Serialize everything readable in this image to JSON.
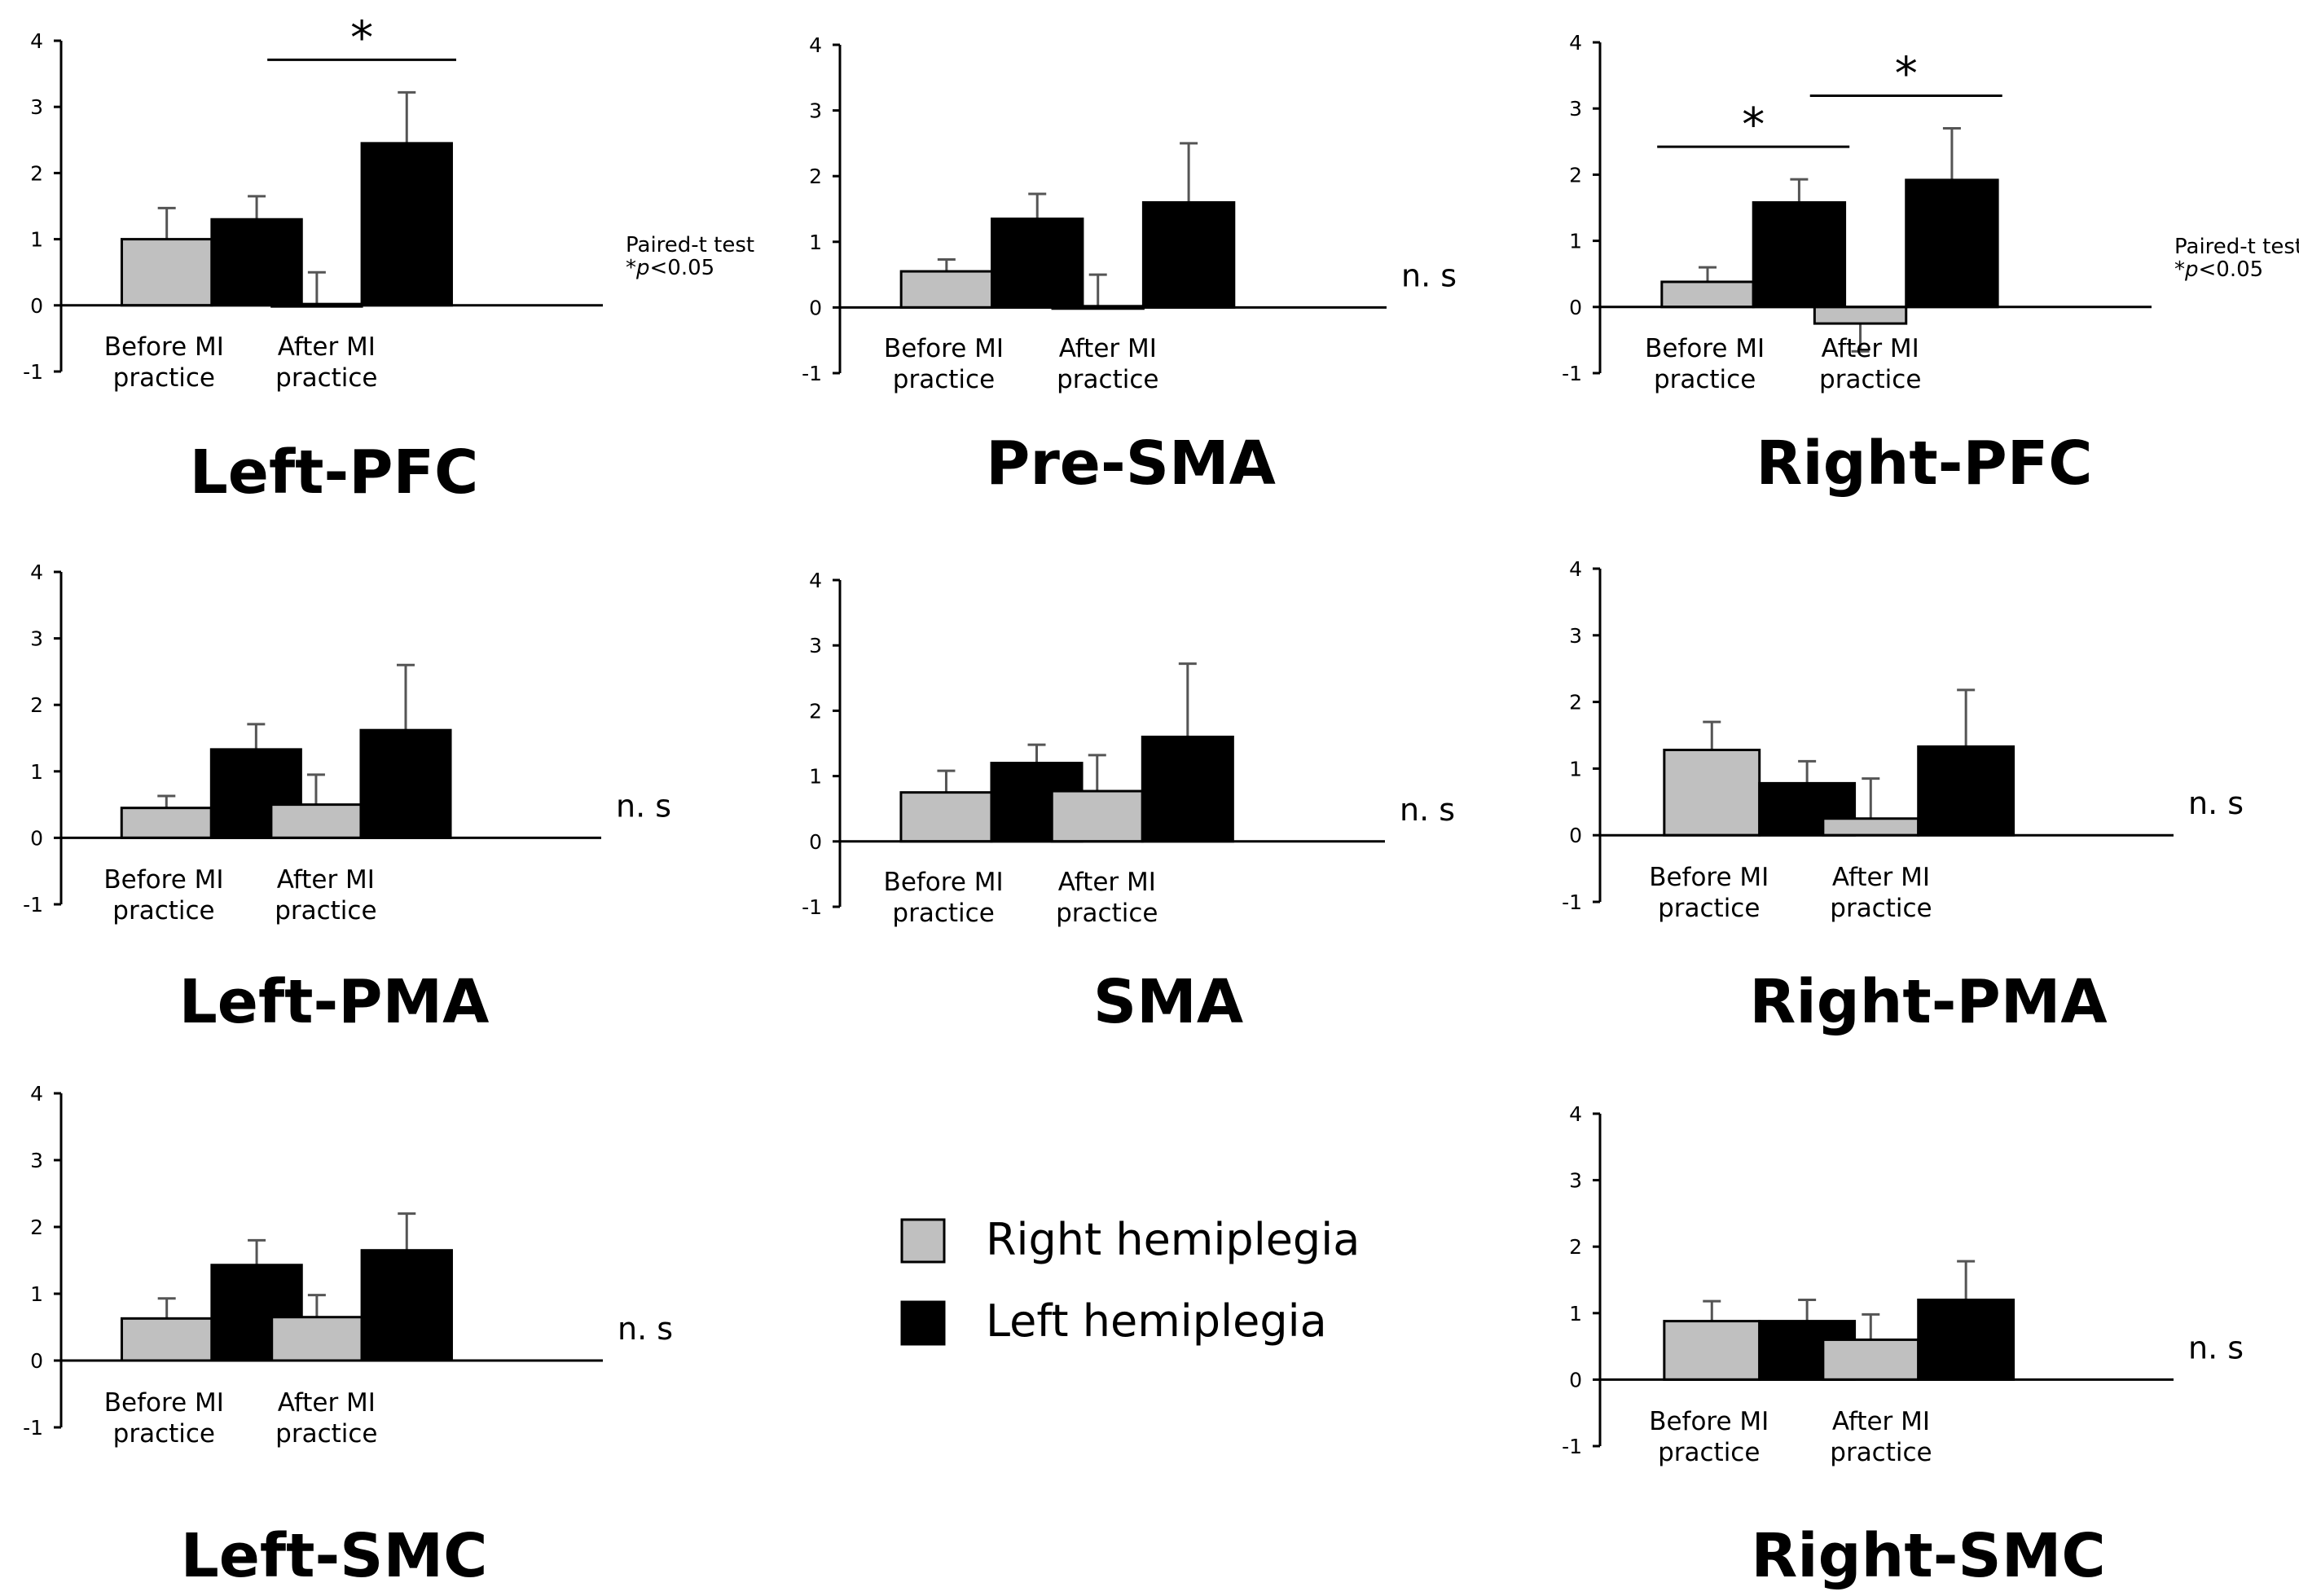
{
  "figure": {
    "legend": [
      {
        "label": "Right hemiplegia",
        "color": "#c0c0c0"
      },
      {
        "label": "Left hemiplegia",
        "color": "#000000"
      }
    ],
    "significance_note": {
      "line1": "Paired-t test",
      "prefix": "*",
      "p": "p",
      "suffix": "<0.05"
    },
    "ns_label": "n. s",
    "star_label": "*",
    "category_label_lines": [
      [
        "Before MI",
        "practice"
      ],
      [
        "After MI",
        "practice"
      ]
    ]
  },
  "chart_data": [
    {
      "type": "bar",
      "title": "Left-PFC",
      "categories": [
        "Before MI practice",
        "After MI practice"
      ],
      "yticks": [
        -1,
        0,
        1,
        2,
        3,
        4
      ],
      "ylim": [
        -1,
        4
      ],
      "series": [
        {
          "name": "Right hemiplegia",
          "values": [
            1.0,
            0.02
          ],
          "errors": [
            0.47,
            0.48
          ]
        },
        {
          "name": "Left hemiplegia",
          "values": [
            1.3,
            2.45
          ],
          "errors": [
            0.35,
            0.77
          ]
        }
      ],
      "significant": [
        false,
        true
      ],
      "annotation": "note"
    },
    {
      "type": "bar",
      "title": "Pre-SMA",
      "categories": [
        "Before MI practice",
        "After MI practice"
      ],
      "yticks": [
        -1,
        0,
        1,
        2,
        3,
        4
      ],
      "ylim": [
        -1,
        4
      ],
      "series": [
        {
          "name": "Right hemiplegia",
          "values": [
            0.55,
            0.02
          ],
          "errors": [
            0.18,
            0.48
          ]
        },
        {
          "name": "Left hemiplegia",
          "values": [
            1.35,
            1.6
          ],
          "errors": [
            0.38,
            0.9
          ]
        }
      ],
      "significant": [
        false,
        false
      ],
      "annotation": "ns"
    },
    {
      "type": "bar",
      "title": "Right-PFC",
      "categories": [
        "Before MI practice",
        "After MI practice"
      ],
      "yticks": [
        -1,
        0,
        1,
        2,
        3,
        4
      ],
      "ylim": [
        -1,
        4
      ],
      "series": [
        {
          "name": "Right hemiplegia",
          "values": [
            0.38,
            -0.25
          ],
          "errors": [
            0.22,
            0.42
          ]
        },
        {
          "name": "Left hemiplegia",
          "values": [
            1.58,
            1.92
          ],
          "errors": [
            0.35,
            0.78
          ]
        }
      ],
      "significant": [
        true,
        true
      ],
      "annotation": "note"
    },
    {
      "type": "bar",
      "title": "Left-PMA",
      "categories": [
        "Before MI practice",
        "After MI practice"
      ],
      "yticks": [
        -1,
        0,
        1,
        2,
        3,
        4
      ],
      "ylim": [
        -1,
        4
      ],
      "series": [
        {
          "name": "Right hemiplegia",
          "values": [
            0.45,
            0.5
          ],
          "errors": [
            0.18,
            0.45
          ]
        },
        {
          "name": "Left hemiplegia",
          "values": [
            1.33,
            1.62
          ],
          "errors": [
            0.38,
            0.98
          ]
        }
      ],
      "significant": [
        false,
        false
      ],
      "annotation": "ns"
    },
    {
      "type": "bar",
      "title": "SMA",
      "categories": [
        "Before MI practice",
        "After MI practice"
      ],
      "yticks": [
        -1,
        0,
        1,
        2,
        3,
        4
      ],
      "ylim": [
        -1,
        4
      ],
      "series": [
        {
          "name": "Right hemiplegia",
          "values": [
            0.75,
            0.77
          ],
          "errors": [
            0.33,
            0.55
          ]
        },
        {
          "name": "Left hemiplegia",
          "values": [
            1.2,
            1.6
          ],
          "errors": [
            0.28,
            1.12
          ]
        }
      ],
      "significant": [
        false,
        false
      ],
      "annotation": "ns"
    },
    {
      "type": "bar",
      "title": "Right-PMA",
      "categories": [
        "Before MI practice",
        "After MI practice"
      ],
      "yticks": [
        -1,
        0,
        1,
        2,
        3,
        4
      ],
      "ylim": [
        -1,
        4
      ],
      "series": [
        {
          "name": "Right hemiplegia",
          "values": [
            1.28,
            0.25
          ],
          "errors": [
            0.42,
            0.6
          ]
        },
        {
          "name": "Left hemiplegia",
          "values": [
            0.78,
            1.33
          ],
          "errors": [
            0.33,
            0.85
          ]
        }
      ],
      "significant": [
        false,
        false
      ],
      "annotation": "ns"
    },
    {
      "type": "bar",
      "title": "Left-SMC",
      "categories": [
        "Before MI practice",
        "After MI practice"
      ],
      "yticks": [
        -1,
        0,
        1,
        2,
        3,
        4
      ],
      "ylim": [
        -1,
        4
      ],
      "series": [
        {
          "name": "Right hemiplegia",
          "values": [
            0.63,
            0.65
          ],
          "errors": [
            0.3,
            0.33
          ]
        },
        {
          "name": "Left hemiplegia",
          "values": [
            1.43,
            1.65
          ],
          "errors": [
            0.37,
            0.55
          ]
        }
      ],
      "significant": [
        false,
        false
      ],
      "annotation": "ns"
    },
    {
      "type": "bar",
      "title": "Right-SMC",
      "categories": [
        "Before MI practice",
        "After MI practice"
      ],
      "yticks": [
        -1,
        0,
        1,
        2,
        3,
        4
      ],
      "ylim": [
        -1,
        4
      ],
      "series": [
        {
          "name": "Right hemiplegia",
          "values": [
            0.88,
            0.6
          ],
          "errors": [
            0.3,
            0.38
          ]
        },
        {
          "name": "Left hemiplegia",
          "values": [
            0.88,
            1.2
          ],
          "errors": [
            0.32,
            0.58
          ]
        }
      ],
      "significant": [
        false,
        false
      ],
      "annotation": "ns"
    }
  ]
}
